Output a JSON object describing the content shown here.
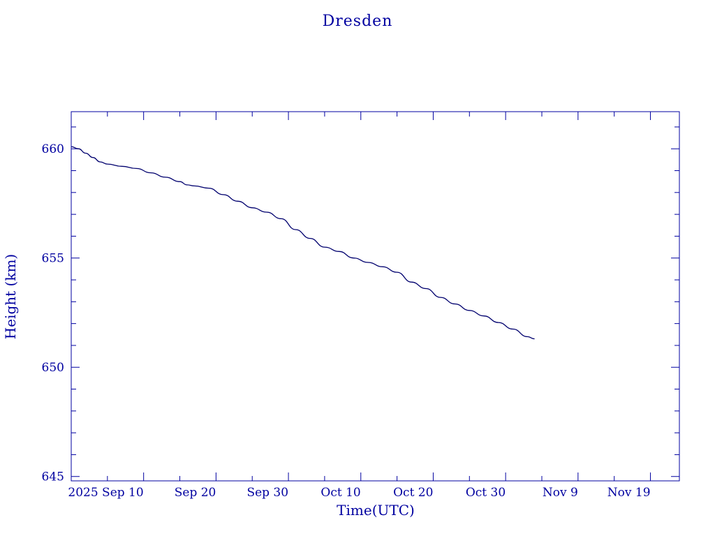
{
  "chart_data": {
    "type": "line",
    "title": "Dresden",
    "xlabel": "Time(UTC)",
    "ylabel": "Height (km)",
    "colors": {
      "line": "#00006e",
      "axes": "#0000a0",
      "text": "#0000a0",
      "background": "#ffffff"
    },
    "grid": false,
    "legend": "none",
    "xlim": [
      "2025-08-31",
      "2025-11-23"
    ],
    "ylim": [
      644.8,
      661.7
    ],
    "x_ticks": [
      {
        "date": "2025-09-10",
        "label": "2025 Sep 10"
      },
      {
        "date": "2025-09-20",
        "label": "Sep 20"
      },
      {
        "date": "2025-09-30",
        "label": "Sep 30"
      },
      {
        "date": "2025-10-10",
        "label": "Oct 10"
      },
      {
        "date": "2025-10-20",
        "label": "Oct 20"
      },
      {
        "date": "2025-10-30",
        "label": "Oct 30"
      },
      {
        "date": "2025-11-09",
        "label": "Nov  9"
      },
      {
        "date": "2025-11-19",
        "label": "Nov 19"
      }
    ],
    "y_ticks": [
      {
        "value": 645,
        "label": "645"
      },
      {
        "value": 650,
        "label": "650"
      },
      {
        "value": 655,
        "label": "655"
      },
      {
        "value": 660,
        "label": "660"
      }
    ],
    "series": [
      {
        "x": [
          "2025-08-31",
          "2025-09-01",
          "2025-09-02",
          "2025-09-03",
          "2025-09-04",
          "2025-09-05",
          "2025-09-07",
          "2025-09-09",
          "2025-09-11",
          "2025-09-13",
          "2025-09-15",
          "2025-09-16",
          "2025-09-17",
          "2025-09-19",
          "2025-09-21",
          "2025-09-23",
          "2025-09-25",
          "2025-09-27",
          "2025-09-29",
          "2025-10-01",
          "2025-10-03",
          "2025-10-05",
          "2025-10-07",
          "2025-10-09",
          "2025-10-11",
          "2025-10-13",
          "2025-10-15",
          "2025-10-17",
          "2025-10-19",
          "2025-10-21",
          "2025-10-23",
          "2025-10-25",
          "2025-10-27",
          "2025-10-29",
          "2025-10-31",
          "2025-11-02",
          "2025-11-03"
        ],
        "y": [
          660.1,
          660.0,
          659.8,
          659.6,
          659.4,
          659.3,
          659.2,
          659.1,
          658.9,
          658.7,
          658.5,
          658.35,
          658.3,
          658.2,
          657.9,
          657.6,
          657.3,
          657.1,
          656.8,
          656.3,
          655.9,
          655.5,
          655.3,
          655.0,
          654.8,
          654.6,
          654.35,
          653.9,
          653.6,
          653.2,
          652.9,
          652.6,
          652.35,
          652.05,
          651.75,
          651.4,
          651.3
        ]
      }
    ]
  }
}
